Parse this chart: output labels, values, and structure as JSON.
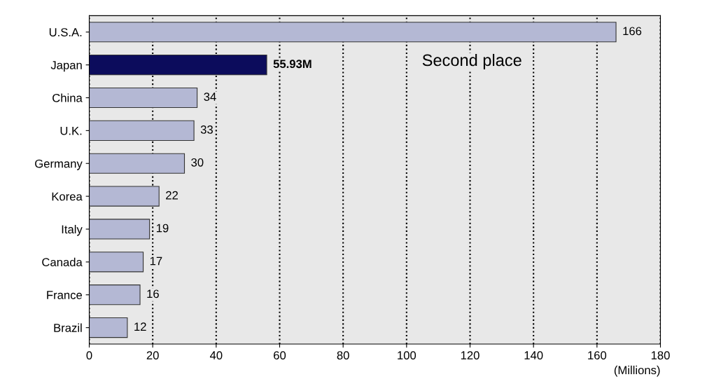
{
  "chart_data": {
    "type": "bar",
    "orientation": "horizontal",
    "categories": [
      "U.S.A.",
      "Japan",
      "China",
      "U.K.",
      "Germany",
      "Korea",
      "Italy",
      "Canada",
      "France",
      "Brazil"
    ],
    "values": [
      166,
      55.93,
      34,
      33,
      30,
      22,
      19,
      17,
      16,
      12
    ],
    "value_labels": [
      "166",
      "55.93M",
      "34",
      "33",
      "30",
      "22",
      "19",
      "17",
      "16",
      "12"
    ],
    "colors": [
      "#b4b8d4",
      "#0c0c5c",
      "#b4b8d4",
      "#b4b8d4",
      "#b4b8d4",
      "#b4b8d4",
      "#b4b8d4",
      "#b4b8d4",
      "#b4b8d4",
      "#b4b8d4"
    ],
    "xlabel": "(Millions)",
    "xlim": [
      0,
      180
    ],
    "xticks": [
      0,
      20,
      40,
      60,
      80,
      100,
      120,
      140,
      160,
      180
    ],
    "grid": "x",
    "annotations": [
      "Second place"
    ]
  }
}
